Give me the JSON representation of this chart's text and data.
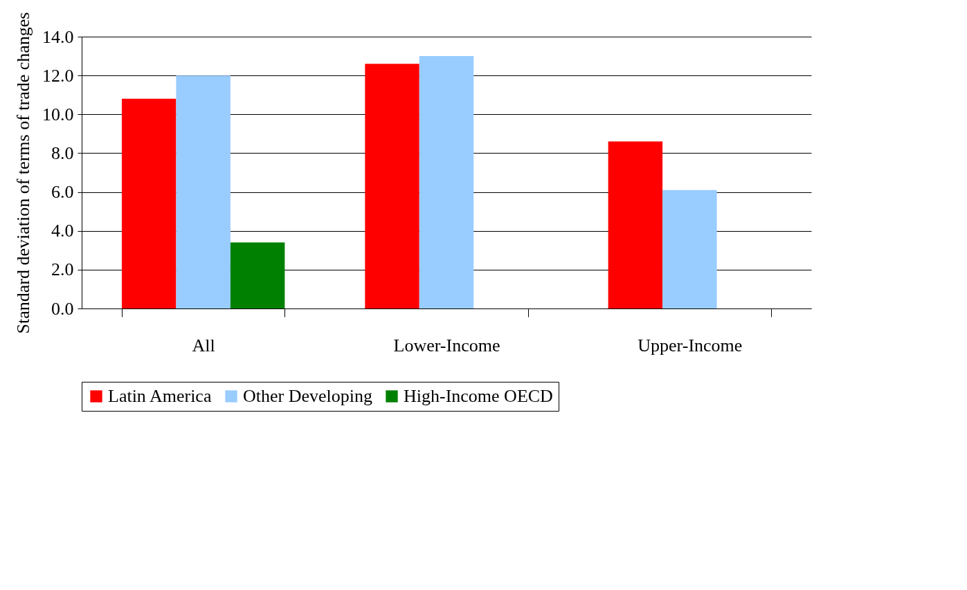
{
  "chart_data": {
    "type": "bar",
    "ylabel": "Standard deviation of terms of trade changes",
    "categories": [
      "All",
      "Lower-Income",
      "Upper-Income"
    ],
    "series": [
      {
        "name": "Latin America",
        "color": "#ff0000",
        "values": [
          10.8,
          12.6,
          8.6
        ]
      },
      {
        "name": "Other Developing",
        "color": "#99ccff",
        "values": [
          12.0,
          13.0,
          6.1
        ]
      },
      {
        "name": "High-Income OECD",
        "color": "#008000",
        "values": [
          3.4,
          null,
          null
        ]
      }
    ],
    "ylim": [
      0,
      14
    ],
    "yticks": [
      {
        "value": 0,
        "label": "0.0"
      },
      {
        "value": 2,
        "label": "2.0"
      },
      {
        "value": 4,
        "label": "4.0"
      },
      {
        "value": 6,
        "label": "6.0"
      },
      {
        "value": 8,
        "label": "8.0"
      },
      {
        "value": 10,
        "label": "10.0"
      },
      {
        "value": 12,
        "label": "12.0"
      },
      {
        "value": 14,
        "label": "14.0"
      }
    ],
    "grid": "y",
    "legend": "bottom"
  }
}
